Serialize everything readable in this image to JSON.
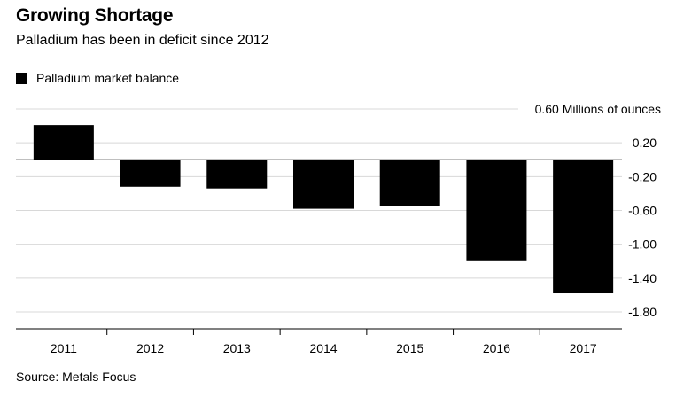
{
  "header": {
    "title": "Growing Shortage",
    "subtitle": "Palladium has been in deficit since 2012"
  },
  "source": "Source: Metals Focus",
  "chart_data": {
    "type": "bar",
    "categories": [
      "2011",
      "2012",
      "2013",
      "2014",
      "2015",
      "2016",
      "2017"
    ],
    "series": [
      {
        "name": "Palladium market balance",
        "values": [
          0.41,
          -0.32,
          -0.34,
          -0.58,
          -0.55,
          -1.19,
          -1.58
        ],
        "color": "#000000"
      }
    ],
    "ylim": [
      -1.8,
      0.6
    ],
    "yticks": [
      0.6,
      0.2,
      -0.2,
      -0.6,
      -1.0,
      -1.4,
      -1.8
    ],
    "ytick_labels": [
      "0.60 Millions of ounces",
      "0.20",
      "-0.20",
      "-0.60",
      "-1.00",
      "-1.40",
      "-1.80"
    ],
    "grid": true,
    "legend_position": "top-left",
    "bar_color": "#000000",
    "grid_color": "#d8d8d8"
  }
}
